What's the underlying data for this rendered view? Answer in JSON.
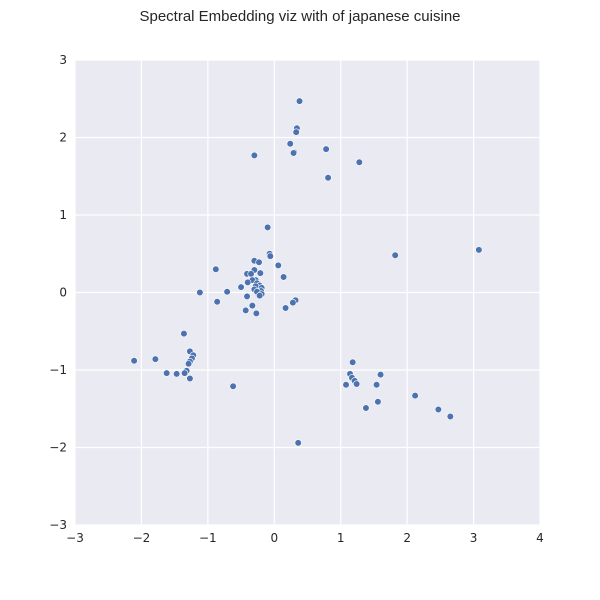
{
  "chart_data": {
    "type": "scatter",
    "title": "Spectral Embedding viz with of japanese cuisine",
    "xlabel": "",
    "ylabel": "",
    "xlim": [
      -3,
      4
    ],
    "ylim": [
      -3,
      3
    ],
    "xticks": [
      -3,
      -2,
      -1,
      0,
      1,
      2,
      3,
      4
    ],
    "yticks": [
      -3,
      -2,
      -1,
      0,
      1,
      2,
      3
    ],
    "x_tick_labels": [
      "−3",
      "−2",
      "−1",
      "0",
      "1",
      "2",
      "3",
      "4"
    ],
    "y_tick_labels": [
      "−3",
      "−2",
      "−1",
      "0",
      "1",
      "2",
      "3"
    ],
    "grid": true,
    "colors": {
      "plot_background": "#EAEAF2",
      "grid": "#FFFFFF",
      "point": "#4C72B0",
      "point_edge": "#FFFFFF",
      "text": "#262626"
    },
    "points": [
      {
        "x": 0.38,
        "y": 2.47
      },
      {
        "x": 0.34,
        "y": 2.12
      },
      {
        "x": 0.33,
        "y": 2.07
      },
      {
        "x": 0.24,
        "y": 1.92
      },
      {
        "x": 0.3,
        "y": 1.81
      },
      {
        "x": 0.29,
        "y": 1.8
      },
      {
        "x": 0.78,
        "y": 1.85
      },
      {
        "x": 1.28,
        "y": 1.68
      },
      {
        "x": 0.81,
        "y": 1.48
      },
      {
        "x": -0.3,
        "y": 1.77
      },
      {
        "x": -0.1,
        "y": 0.84
      },
      {
        "x": -0.07,
        "y": 0.5
      },
      {
        "x": -0.06,
        "y": 0.47
      },
      {
        "x": 0.06,
        "y": 0.35
      },
      {
        "x": 0.14,
        "y": 0.2
      },
      {
        "x": -0.3,
        "y": 0.41
      },
      {
        "x": -0.23,
        "y": 0.39
      },
      {
        "x": -0.3,
        "y": 0.29
      },
      {
        "x": -0.21,
        "y": 0.25
      },
      {
        "x": -0.41,
        "y": 0.24
      },
      {
        "x": -0.35,
        "y": 0.24
      },
      {
        "x": -0.88,
        "y": 0.3
      },
      {
        "x": -0.28,
        "y": 0.16
      },
      {
        "x": -0.33,
        "y": 0.16
      },
      {
        "x": -0.4,
        "y": 0.13
      },
      {
        "x": -0.26,
        "y": 0.12
      },
      {
        "x": -0.22,
        "y": 0.09
      },
      {
        "x": -0.28,
        "y": 0.08
      },
      {
        "x": -0.5,
        "y": 0.07
      },
      {
        "x": -0.19,
        "y": 0.06
      },
      {
        "x": -0.3,
        "y": 0.04
      },
      {
        "x": -0.2,
        "y": 0.02
      },
      {
        "x": -0.26,
        "y": 0.01
      },
      {
        "x": -0.71,
        "y": 0.01
      },
      {
        "x": -1.12,
        "y": 0.0
      },
      {
        "x": -0.19,
        "y": -0.02
      },
      {
        "x": -0.22,
        "y": -0.04
      },
      {
        "x": -0.41,
        "y": -0.05
      },
      {
        "x": 0.32,
        "y": -0.1
      },
      {
        "x": 0.28,
        "y": -0.13
      },
      {
        "x": -0.86,
        "y": -0.12
      },
      {
        "x": -0.33,
        "y": -0.17
      },
      {
        "x": 0.17,
        "y": -0.2
      },
      {
        "x": -0.43,
        "y": -0.23
      },
      {
        "x": -0.27,
        "y": -0.27
      },
      {
        "x": 1.82,
        "y": 0.48
      },
      {
        "x": 3.08,
        "y": 0.55
      },
      {
        "x": -1.36,
        "y": -0.53
      },
      {
        "x": -1.27,
        "y": -0.76
      },
      {
        "x": -1.22,
        "y": -0.81
      },
      {
        "x": -1.24,
        "y": -0.85
      },
      {
        "x": -1.27,
        "y": -0.89
      },
      {
        "x": -1.29,
        "y": -0.92
      },
      {
        "x": -1.32,
        "y": -1.01
      },
      {
        "x": -1.35,
        "y": -1.04
      },
      {
        "x": -1.27,
        "y": -1.11
      },
      {
        "x": -1.47,
        "y": -1.05
      },
      {
        "x": -1.62,
        "y": -1.04
      },
      {
        "x": -1.79,
        "y": -0.86
      },
      {
        "x": -2.11,
        "y": -0.88
      },
      {
        "x": -0.62,
        "y": -1.21
      },
      {
        "x": 1.18,
        "y": -0.9
      },
      {
        "x": 1.14,
        "y": -1.05
      },
      {
        "x": 1.17,
        "y": -1.1
      },
      {
        "x": 1.21,
        "y": -1.14
      },
      {
        "x": 1.24,
        "y": -1.18
      },
      {
        "x": 1.08,
        "y": -1.19
      },
      {
        "x": 1.54,
        "y": -1.19
      },
      {
        "x": 1.6,
        "y": -1.06
      },
      {
        "x": 1.56,
        "y": -1.41
      },
      {
        "x": 1.38,
        "y": -1.49
      },
      {
        "x": 2.12,
        "y": -1.33
      },
      {
        "x": 2.47,
        "y": -1.51
      },
      {
        "x": 2.65,
        "y": -1.6
      },
      {
        "x": 0.36,
        "y": -1.94
      }
    ]
  }
}
